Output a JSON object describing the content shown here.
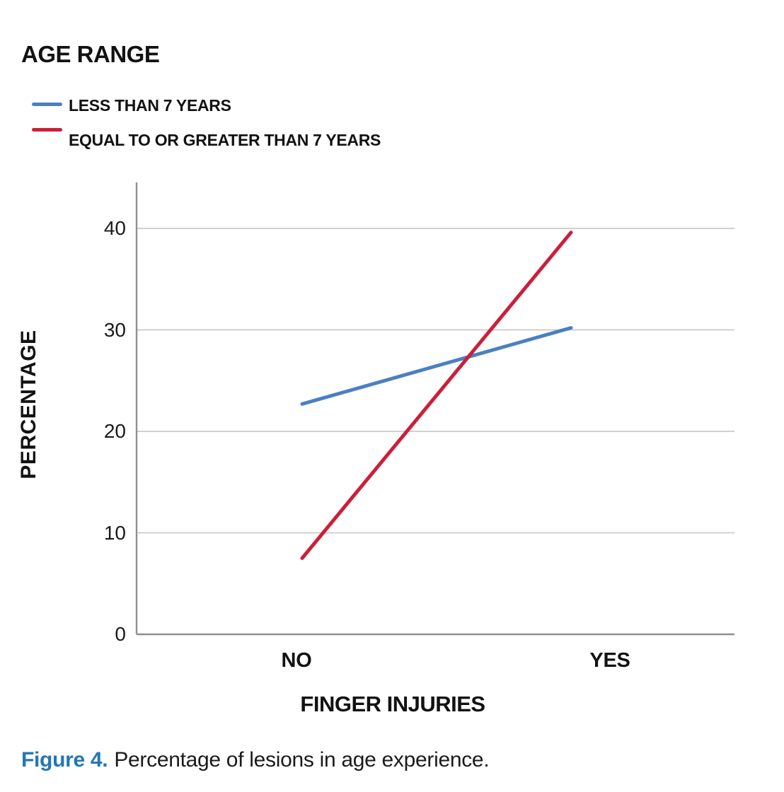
{
  "figure": {
    "legend_title": "AGE RANGE",
    "caption_label": "Figure 4.",
    "caption_text": "Percentage of lesions in age experience."
  },
  "colors": {
    "series_blue": "#4A80C2",
    "series_red": "#CB1F3A",
    "caption_accent": "#2377B4",
    "gridline": "#CACACA",
    "axis": "#8F9093",
    "text": "#121212"
  },
  "chart_data": {
    "type": "line",
    "title": "AGE RANGE",
    "categories": [
      "NO",
      "YES"
    ],
    "series": [
      {
        "name": "LESS THAN 7 YEARS",
        "color": "#4A80C2",
        "values": [
          22.7,
          30.2
        ]
      },
      {
        "name": "EQUAL TO OR GREATER THAN 7 YEARS",
        "color": "#CB1F3A",
        "values": [
          7.5,
          39.6
        ]
      }
    ],
    "xlabel": "FINGER INJURIES",
    "ylabel": "PERCENTAGE",
    "y_ticks": [
      0,
      10,
      20,
      30,
      40
    ],
    "ylim": [
      0,
      44.5
    ],
    "grid": true,
    "legend_position": "top-left",
    "caption": "Figure 4. Percentage of lesions in age experience."
  }
}
